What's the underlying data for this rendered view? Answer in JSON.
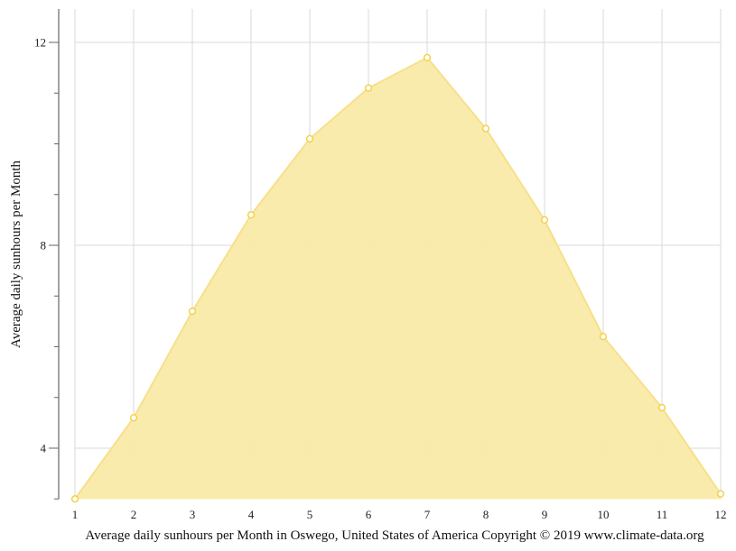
{
  "chart_data": {
    "type": "area",
    "title": "",
    "caption": "Average daily sunhours per Month in Oswego, United States of America Copyright © 2019 www.climate-data.org",
    "xlabel": "",
    "ylabel": "Average daily sunhours per Month",
    "x": [
      1,
      2,
      3,
      4,
      5,
      6,
      7,
      8,
      9,
      10,
      11,
      12
    ],
    "series": [
      {
        "name": "Average daily sunhours",
        "values": [
          3.0,
          4.6,
          6.7,
          8.6,
          10.1,
          11.1,
          11.7,
          10.3,
          8.5,
          6.2,
          4.8,
          3.1
        ]
      }
    ],
    "ylim": [
      3,
      12.6
    ],
    "xlim": [
      1,
      12
    ],
    "y_major_ticks": [
      4,
      8,
      12
    ],
    "y_minor_ticks": [
      3,
      5,
      6,
      7,
      9,
      10,
      11
    ],
    "x_ticks": [
      1,
      2,
      3,
      4,
      5,
      6,
      7,
      8,
      9,
      10,
      11,
      12
    ],
    "grid": true,
    "legend": "none",
    "colors": {
      "fill": "#f9eaa8",
      "stroke": "#f7e08a",
      "marker_stroke": "#f4cf3e",
      "marker_fill": "#ffffff",
      "grid": "#d9d9d9",
      "axis": "#666666"
    }
  }
}
